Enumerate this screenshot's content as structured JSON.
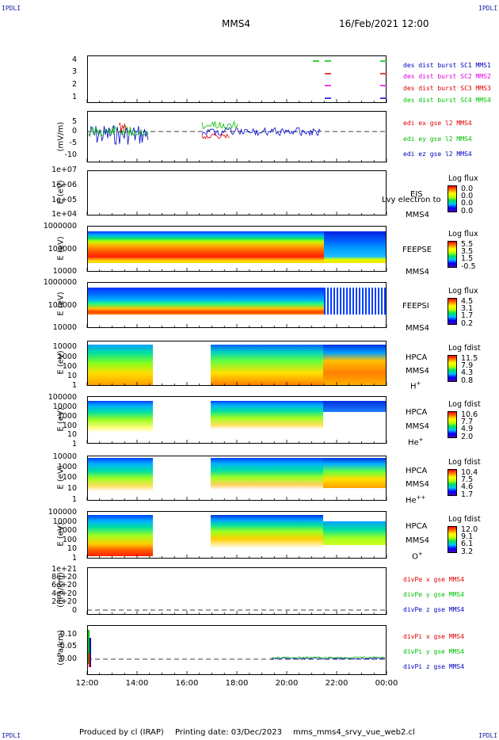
{
  "header": {
    "corner_tl": "IPDLI",
    "corner_tr": "IPDLI",
    "corner_bl": "IPDLI",
    "corner_br": "IPDLI",
    "title": "MMS4",
    "datetime": "16/Feb/2021 12:00"
  },
  "panels": {
    "des": {
      "ticks": [
        "4",
        "3",
        "2",
        "1"
      ],
      "legend": [
        "des dist burst SC1 MMS1",
        "des dist burst SC2 MMS2",
        "des dist burst SC3 MMS3",
        "des dist burst SC4 MMS4"
      ]
    },
    "edi": {
      "ylabel": "(mV/m)",
      "ticks": [
        "5",
        "0",
        "-5",
        "-10"
      ],
      "legend": [
        "edi ex gse l2 MMS4",
        "edi ey gse l2 MMS4",
        "edi ez gse l2 MMS4"
      ]
    },
    "eis": {
      "ylabel": "E (eV)",
      "ticks": [
        "1e+07",
        "1e+06",
        "1e+05",
        "1e+04"
      ],
      "side1": "EIS",
      "side2": "MMS4",
      "overlay": "Lvy electron to",
      "cb_title": "Log flux",
      "cb_values": [
        "0.0",
        "0.0",
        "0.0",
        "0.0"
      ]
    },
    "feepse": {
      "ylabel": "E (eV)",
      "ticks": [
        "1000000",
        "100000",
        "10000"
      ],
      "side1": "FEEPSE",
      "side2": "MMS4",
      "cb_title": "Log flux",
      "cb_values": [
        "5.5",
        "3.5",
        "1.5",
        "-0.5"
      ]
    },
    "feepsi": {
      "ylabel": "E (eV)",
      "ticks": [
        "1000000",
        "100000",
        "10000"
      ],
      "side1": "FEEPSI",
      "side2": "MMS4",
      "cb_title": "Log flux",
      "cb_values": [
        "4.5",
        "3.1",
        "1.7",
        "0.2"
      ]
    },
    "hpca_h": {
      "ylabel": "E (eV)",
      "ticks": [
        "10000",
        "1000",
        "100",
        "10",
        "1"
      ],
      "side1": "HPCA",
      "side2": "MMS4",
      "species": "H",
      "charge": "+",
      "cb_title": "Log fdist",
      "cb_values": [
        "11.5",
        "7.9",
        "4.3",
        "0.8"
      ]
    },
    "hpca_he": {
      "ylabel": "E (eV)",
      "ticks": [
        "100000",
        "10000",
        "1000",
        "100",
        "10",
        "1"
      ],
      "side1": "HPCA",
      "side2": "MMS4",
      "species": "He",
      "charge": "+",
      "cb_title": "Log fdist",
      "cb_values": [
        "10.6",
        "7.7",
        "4.9",
        "2.0"
      ]
    },
    "hpca_he2": {
      "ylabel": "E (eV)",
      "ticks": [
        "10000",
        "1000",
        "100",
        "10",
        "1"
      ],
      "side1": "HPCA",
      "side2": "MMS4",
      "species": "He",
      "charge": "++",
      "cb_title": "Log fdist",
      "cb_values": [
        "10.4",
        "7.5",
        "4.6",
        "1.7"
      ]
    },
    "hpca_o": {
      "ylabel": "E (eV)",
      "ticks": [
        "100000",
        "10000",
        "1000",
        "100",
        "10",
        "1"
      ],
      "side1": "HPCA",
      "side2": "MMS4",
      "species": "O",
      "charge": "+",
      "cb_title": "Log fdist",
      "cb_values": [
        "12.0",
        "9.1",
        "6.1",
        "3.2"
      ]
    },
    "divpe": {
      "ylabel": "(nPa/km)",
      "ticks": [
        "1e+21",
        "8e+20",
        "6e+20",
        "4e+20",
        "2e+20",
        "0"
      ],
      "legend": [
        "divPe x gse MMS4",
        "divPe y gse MMS4",
        "divPe z gse MMS4"
      ]
    },
    "divpi": {
      "ylabel": "(nPa/km)",
      "ticks": [
        "0.10",
        "0.05",
        "0.00"
      ],
      "legend": [
        "divPi x gse MMS4",
        "divPi y gse MMS4",
        "divPi z gse MMS4"
      ]
    }
  },
  "xaxis": {
    "ticks": [
      "12:00",
      "14:00",
      "16:00",
      "18:00",
      "20:00",
      "22:00",
      "00:00"
    ]
  },
  "colors": {
    "x": "#e00000",
    "y": "#00c000",
    "z": "#0000d0",
    "mms2": "#e000e0",
    "legend_blue": "#0000c0"
  },
  "footer": {
    "produced": "Produced by cl (IRAP)",
    "printing": "Printing date: 03/Dec/2023",
    "file": "mms_mms4_srvy_vue_web2.cl"
  },
  "chart_data": {
    "type": "heatmap",
    "title": "MMS4",
    "x_range": [
      "12:00",
      "00:00"
    ],
    "time_gap_hpca": [
      "14:35",
      "16:55"
    ],
    "edi_ylim": [
      -10,
      7
    ],
    "divpi_ylim": [
      -0.03,
      0.13
    ],
    "divpe_ylim": [
      -1e+19,
      1.1e+21
    ]
  }
}
